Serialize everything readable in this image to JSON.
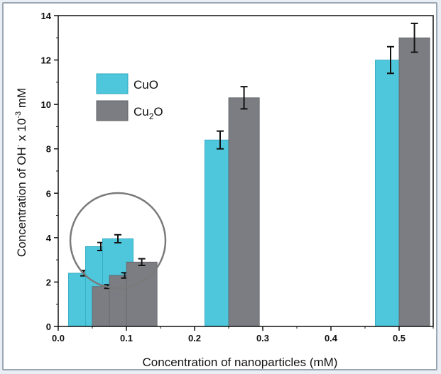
{
  "chart_data": {
    "type": "bar",
    "xlabel": "Concentration of nanoparticles (mM)",
    "ylabel_parts": {
      "main": "Concentration of OH",
      "sup": "·",
      "mid": " x 10",
      "exp": "-3",
      "unit": " mM"
    },
    "xlim": [
      0.0,
      0.55
    ],
    "ylim": [
      0,
      14
    ],
    "xticks": [
      "0.0",
      "0.1",
      "0.2",
      "0.3",
      "0.4",
      "0.5"
    ],
    "xtick_values": [
      0.0,
      0.1,
      0.2,
      0.3,
      0.4,
      0.5
    ],
    "yticks": [
      "0",
      "2",
      "4",
      "6",
      "8",
      "10",
      "12",
      "14"
    ],
    "ytick_values": [
      0,
      2,
      4,
      6,
      8,
      10,
      12,
      14
    ],
    "bar_width": 0.045,
    "series": [
      {
        "name": "CuO",
        "legend_main": "CuO",
        "legend_sub": "",
        "legend_tail": "",
        "color": "#4ec7dc",
        "x": [
          0.0375,
          0.0625,
          0.0875,
          0.2375,
          0.4875
        ],
        "values": [
          2.4,
          3.6,
          3.95,
          8.4,
          12.0
        ],
        "errors": [
          0.12,
          0.18,
          0.18,
          0.4,
          0.6
        ]
      },
      {
        "name": "Cu2O",
        "legend_main": "Cu",
        "legend_sub": "2",
        "legend_tail": "O",
        "color": "#7b7d82",
        "x": [
          0.0725,
          0.0975,
          0.1225,
          0.2725,
          0.5225
        ],
        "values": [
          1.8,
          2.3,
          2.9,
          10.3,
          13.0
        ],
        "errors": [
          0.08,
          0.12,
          0.15,
          0.5,
          0.65
        ]
      }
    ],
    "legend_position": "upper-left",
    "annotation": "circle around low-concentration bars",
    "grid": false
  }
}
